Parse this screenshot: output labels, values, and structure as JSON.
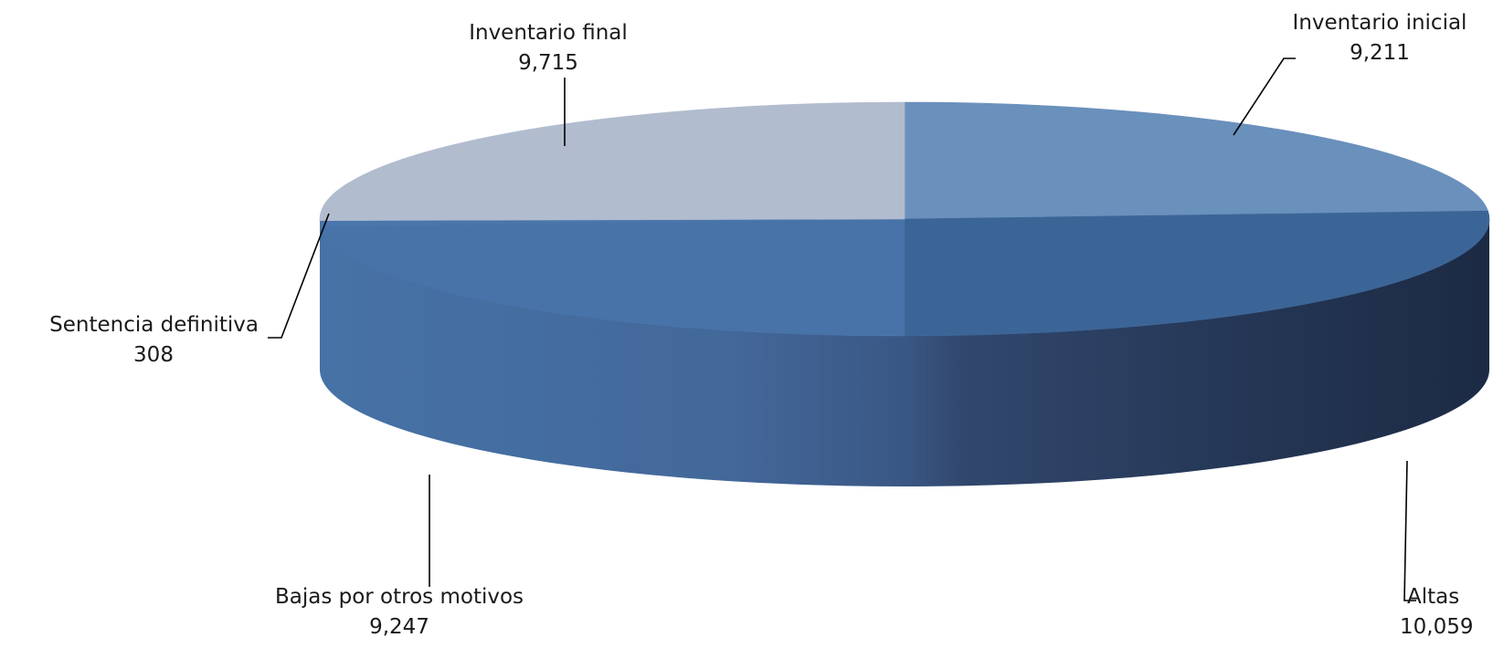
{
  "chart_data": {
    "type": "pie",
    "style": "3d",
    "categories": [
      "Inventario inicial",
      "Altas",
      "Bajas por otros motivos",
      "Sentencia definitiva",
      "Inventario final"
    ],
    "values": [
      9211,
      10059,
      9247,
      308,
      9715
    ],
    "value_labels": [
      "9,211",
      "10,059",
      "9,247",
      "308",
      "9,715"
    ],
    "colors": [
      "#6a90bc",
      "#3c6597",
      "#4873a8",
      "#4a76ab",
      "#b2bccf"
    ],
    "legend": "none"
  }
}
